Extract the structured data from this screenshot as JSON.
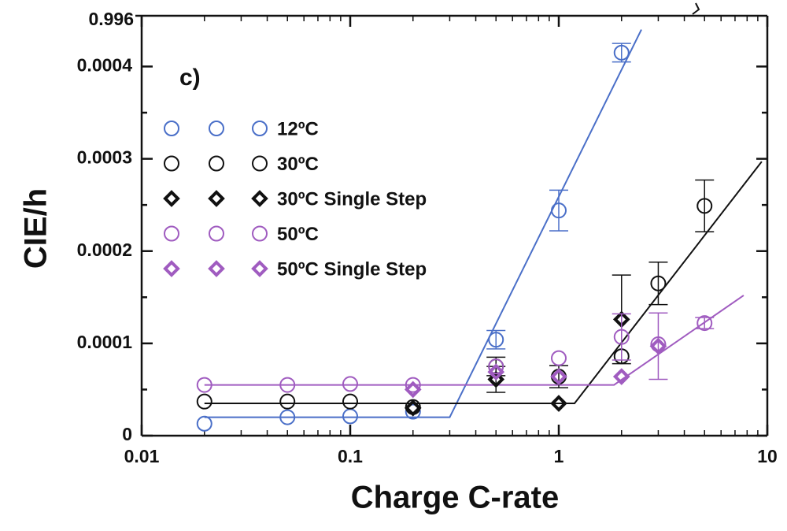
{
  "chart_data": {
    "type": "scatter",
    "annotation": "c)",
    "axis_break_label": "0.996",
    "xlabel": "Charge C-rate",
    "ylabel": "CIE/h",
    "xscale": "log",
    "xlim": [
      0.01,
      10
    ],
    "xticks": [
      0.01,
      0.1,
      1,
      10
    ],
    "ylim": [
      0,
      0.000455
    ],
    "yticks": [
      0,
      0.0001,
      0.0002,
      0.0003,
      0.0004
    ],
    "series": [
      {
        "name": "12ºC",
        "color": "#4a6fc8",
        "marker": "circle",
        "x": [
          0.02,
          0.05,
          0.1,
          0.2,
          0.5,
          1,
          2
        ],
        "values": [
          1.3e-05,
          2e-05,
          2.1e-05,
          2.6e-05,
          0.000104,
          0.000244,
          0.000415
        ],
        "errors": [
          null,
          null,
          null,
          null,
          1e-05,
          2.2e-05,
          1e-05
        ]
      },
      {
        "name": "30ºC",
        "color": "#111111",
        "marker": "circle",
        "x": [
          0.02,
          0.05,
          0.1,
          0.2,
          0.5,
          1,
          2,
          3,
          5
        ],
        "values": [
          3.7e-05,
          3.7e-05,
          3.7e-05,
          3.1e-05,
          7.5e-05,
          6.4e-05,
          8.6e-05,
          0.000165,
          0.000249
        ],
        "errors": [
          null,
          null,
          null,
          null,
          1e-05,
          1.2e-05,
          null,
          2.3e-05,
          2.8e-05
        ]
      },
      {
        "name": "30ºC Single Step",
        "color": "#111111",
        "marker": "diamond",
        "x": [
          0.2,
          0.5,
          1,
          2
        ],
        "values": [
          3e-05,
          6.1e-05,
          3.5e-05,
          0.000126
        ],
        "errors": [
          null,
          1.4e-05,
          null,
          4.8e-05
        ]
      },
      {
        "name": "50ºC",
        "color": "#a05cc0",
        "marker": "circle",
        "x": [
          0.02,
          0.05,
          0.1,
          0.2,
          0.5,
          1,
          2,
          3,
          5
        ],
        "values": [
          5.5e-05,
          5.5e-05,
          5.6e-05,
          5.5e-05,
          7.5e-05,
          8.4e-05,
          0.000107,
          9.9e-05,
          0.000122
        ],
        "errors": [
          null,
          null,
          null,
          null,
          null,
          null,
          2.5e-05,
          null,
          6e-06
        ]
      },
      {
        "name": "50ºC Single Step",
        "color": "#a05cc0",
        "marker": "diamond",
        "x": [
          0.2,
          0.5,
          1,
          2,
          3
        ],
        "values": [
          5e-05,
          6.9e-05,
          6.4e-05,
          6.4e-05,
          9.7e-05
        ],
        "errors": [
          null,
          null,
          null,
          null,
          3.6e-05
        ]
      }
    ],
    "fits": [
      {
        "color": "#4a6fc8",
        "x": [
          0.02,
          0.3,
          2.49
        ],
        "values": [
          2e-05,
          2e-05,
          0.00044
        ]
      },
      {
        "color": "#111111",
        "x": [
          0.02,
          1.19,
          9.4
        ],
        "values": [
          3.5e-05,
          3.5e-05,
          0.000297
        ]
      },
      {
        "color": "#a05cc0",
        "x": [
          0.02,
          1.84,
          7.7
        ],
        "values": [
          5.5e-05,
          5.5e-05,
          0.000152
        ]
      }
    ]
  }
}
